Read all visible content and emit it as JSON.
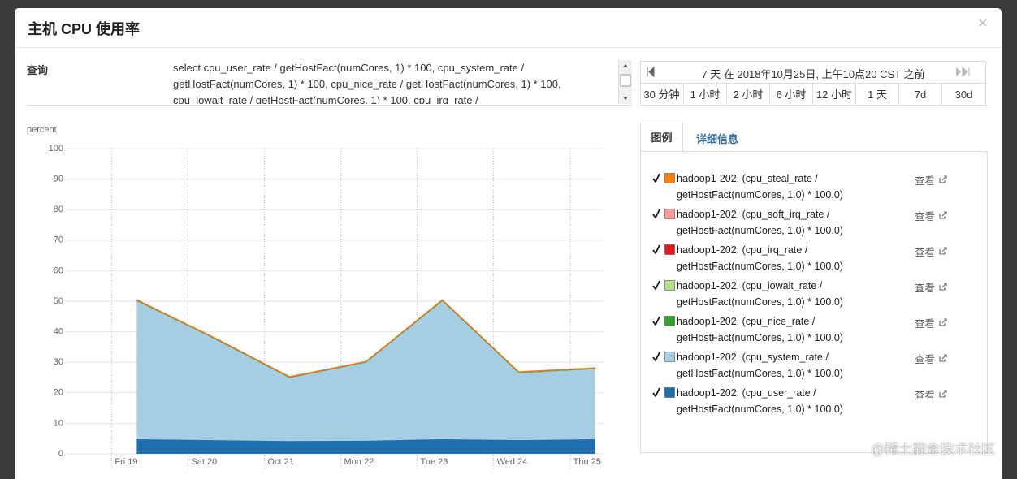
{
  "modal": {
    "title": "主机 CPU 使用率",
    "close": "×"
  },
  "query": {
    "label": "查询",
    "lines": [
      "select cpu_user_rate / getHostFact(numCores, 1) * 100, cpu_system_rate /",
      "getHostFact(numCores, 1) * 100, cpu_nice_rate / getHostFact(numCores, 1) * 100,",
      "cpu_iowait_rate / getHostFact(numCores, 1) * 100, cpu_irq_rate /"
    ]
  },
  "time_range": {
    "label": "7 天 在 2018年10月25日, 上午10点20 CST 之前",
    "options": [
      "30 分钟",
      "1 小时",
      "2 小时",
      "6 小时",
      "12 小时",
      "1 天",
      "7d",
      "30d"
    ]
  },
  "tabs": [
    "图例",
    "详细信息"
  ],
  "legend_link": "查看",
  "watermark": "@稀土掘金技术社区",
  "chart_data": {
    "type": "area",
    "stacked": true,
    "y_label": "percent",
    "x": [
      0.33,
      1.33,
      2.33,
      3.33,
      4.33,
      5.33,
      6.33
    ],
    "xlim": [
      -0.61,
      6.44
    ],
    "xticks": [
      {
        "value": 0,
        "label": "Fri 19"
      },
      {
        "value": 1,
        "label": "Sat 20"
      },
      {
        "value": 2,
        "label": "Oct 21"
      },
      {
        "value": 3,
        "label": "Mon 22"
      },
      {
        "value": 4,
        "label": "Tue 23"
      },
      {
        "value": 5,
        "label": "Wed 24"
      },
      {
        "value": 6,
        "label": "Thu 25"
      }
    ],
    "ylim": [
      0,
      100
    ],
    "yticks": [
      0,
      10,
      20,
      30,
      40,
      50,
      60,
      70,
      80,
      90,
      100
    ],
    "grid": true,
    "series": [
      {
        "name": "hadoop1-202, (cpu_user_rate / getHostFact(numCores, 1.0) * 100.0)",
        "color": "#1f6fb0",
        "values": [
          4.8,
          4.5,
          4.2,
          4.3,
          4.8,
          4.5,
          4.8
        ]
      },
      {
        "name": "hadoop1-202, (cpu_system_rate / getHostFact(numCores, 1.0) * 100.0)",
        "color": "#a6cee3",
        "values": [
          45.4,
          33.5,
          20.8,
          25.7,
          45.4,
          22.1,
          23.1
        ]
      },
      {
        "name": "hadoop1-202, (cpu_nice_rate / getHostFact(numCores, 1.0) * 100.0)",
        "color": "#33a02c",
        "values": [
          0,
          0,
          0,
          0,
          0,
          0,
          0
        ]
      },
      {
        "name": "hadoop1-202, (cpu_iowait_rate / getHostFact(numCores, 1.0) * 100.0)",
        "color": "#b2df8a",
        "values": [
          0.2,
          0.2,
          0.2,
          0.2,
          0.2,
          0.2,
          0.2
        ]
      },
      {
        "name": "hadoop1-202, (cpu_irq_rate / getHostFact(numCores, 1.0) * 100.0)",
        "color": "#e31a1c",
        "values": [
          0,
          0,
          0,
          0,
          0,
          0,
          0
        ]
      },
      {
        "name": "hadoop1-202, (cpu_soft_irq_rate / getHostFact(numCores, 1.0) * 100.0)",
        "color": "#fb9a99",
        "values": [
          0.1,
          0.1,
          0.1,
          0.1,
          0.1,
          0.1,
          0.1
        ]
      },
      {
        "name": "hadoop1-202, (cpu_steal_rate / getHostFact(numCores, 1.0) * 100.0)",
        "color": "#ff7f00",
        "values": [
          0,
          0,
          0,
          0,
          0,
          0,
          0
        ]
      }
    ]
  }
}
